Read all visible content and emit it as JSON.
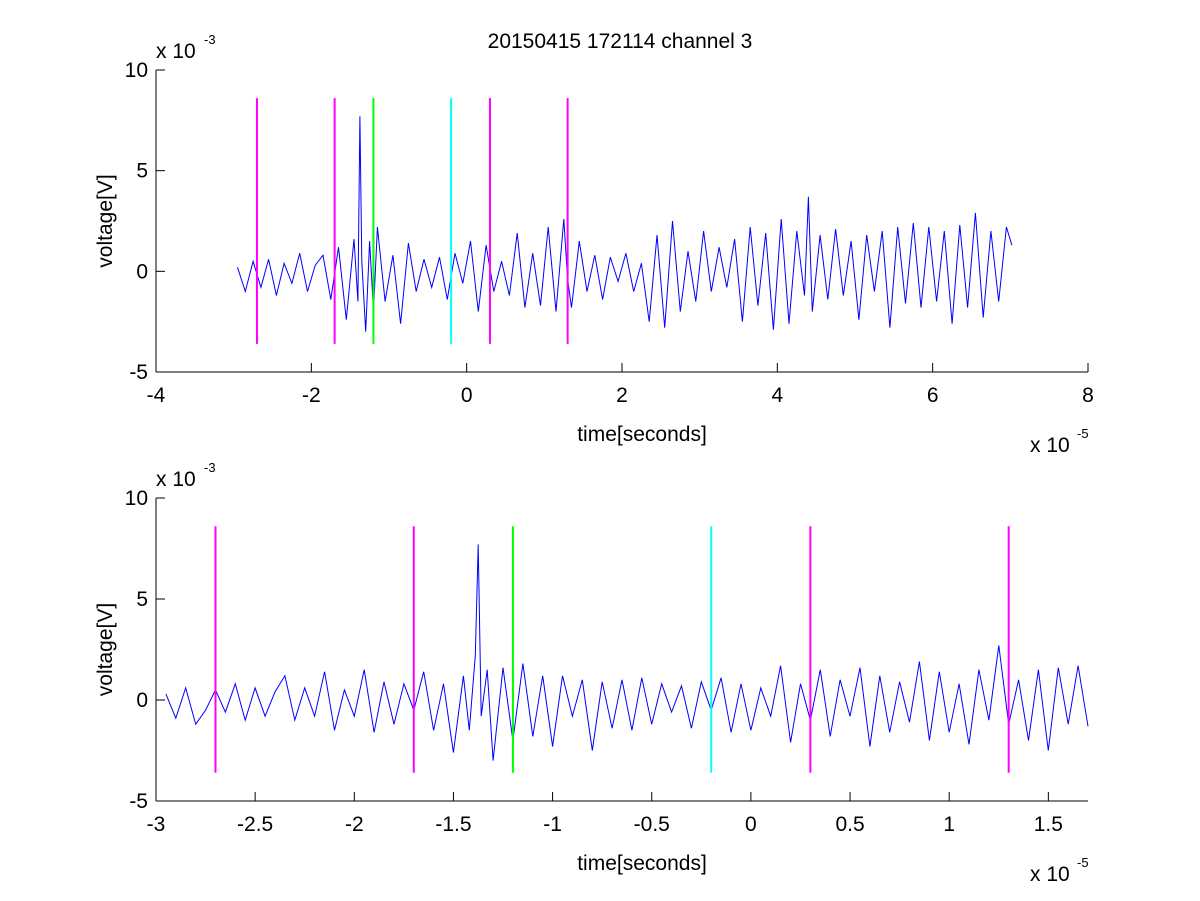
{
  "figure_title": "20150415 172114 channel 3",
  "chart_data": [
    {
      "type": "line",
      "title": "20150415 172114 channel 3",
      "xlabel": "time[seconds]",
      "ylabel": "voltage[V]",
      "xlim": [
        -4,
        8
      ],
      "ylim": [
        -5,
        10
      ],
      "x_multiplier": "x 10",
      "x_exponent": "-5",
      "y_multiplier": "x 10",
      "y_exponent": "-3",
      "x_ticks": [
        -4,
        -2,
        0,
        2,
        4,
        6,
        8
      ],
      "x_tick_labels": [
        "-4",
        "-2",
        "0",
        "2",
        "4",
        "6",
        "8"
      ],
      "y_ticks": [
        -5,
        0,
        5,
        10
      ],
      "y_tick_labels": [
        "-5",
        "0",
        "5",
        "10"
      ],
      "grid": false,
      "series": [
        {
          "color": "#0000ff",
          "x": [
            -2.95,
            -2.85,
            -2.75,
            -2.65,
            -2.55,
            -2.45,
            -2.35,
            -2.25,
            -2.15,
            -2.05,
            -1.95,
            -1.85,
            -1.75,
            -1.65,
            -1.55,
            -1.45,
            -1.4,
            -1.375,
            -1.35,
            -1.3,
            -1.25,
            -1.2,
            -1.15,
            -1.05,
            -0.95,
            -0.85,
            -0.75,
            -0.65,
            -0.55,
            -0.45,
            -0.35,
            -0.25,
            -0.15,
            -0.05,
            0.05,
            0.15,
            0.25,
            0.35,
            0.45,
            0.55,
            0.65,
            0.75,
            0.85,
            0.95,
            1.05,
            1.15,
            1.25,
            1.3,
            1.35,
            1.45,
            1.55,
            1.65,
            1.75,
            1.85,
            1.95,
            2.05,
            2.15,
            2.25,
            2.35,
            2.45,
            2.55,
            2.65,
            2.75,
            2.85,
            2.95,
            3.05,
            3.15,
            3.25,
            3.35,
            3.45,
            3.55,
            3.65,
            3.75,
            3.85,
            3.95,
            4.05,
            4.15,
            4.25,
            4.35,
            4.4,
            4.45,
            4.55,
            4.65,
            4.75,
            4.85,
            4.95,
            5.05,
            5.15,
            5.25,
            5.35,
            5.45,
            5.55,
            5.65,
            5.75,
            5.85,
            5.95,
            6.05,
            6.15,
            6.25,
            6.35,
            6.45,
            6.55,
            6.65,
            6.75,
            6.85,
            6.95,
            7.02
          ],
          "y": [
            0.2,
            -1.0,
            0.5,
            -0.8,
            0.6,
            -1.2,
            0.4,
            -0.6,
            0.9,
            -1.0,
            0.3,
            0.8,
            -1.4,
            1.2,
            -2.4,
            1.6,
            -1.5,
            7.7,
            0.5,
            -3.0,
            1.5,
            -2.0,
            2.2,
            -1.5,
            0.8,
            -2.6,
            1.4,
            -1.0,
            0.6,
            -0.8,
            0.7,
            -1.4,
            0.9,
            -0.6,
            1.5,
            -2.0,
            1.3,
            -1.0,
            0.5,
            -1.2,
            1.9,
            -1.8,
            0.9,
            -1.7,
            2.2,
            -2.0,
            2.6,
            -0.4,
            -1.8,
            1.5,
            -1.0,
            0.8,
            -1.4,
            0.7,
            -0.5,
            0.9,
            -1.0,
            0.4,
            -2.5,
            1.8,
            -2.8,
            2.5,
            -2.0,
            1.0,
            -1.5,
            2.0,
            -1.0,
            1.2,
            -0.8,
            1.6,
            -2.5,
            2.2,
            -1.7,
            1.9,
            -2.9,
            2.6,
            -2.6,
            2.0,
            -1.2,
            3.7,
            -2.0,
            1.8,
            -1.4,
            2.1,
            -1.2,
            1.5,
            -2.4,
            1.8,
            -1.0,
            2.0,
            -2.8,
            2.2,
            -1.6,
            2.4,
            -1.8,
            2.2,
            -1.5,
            2.0,
            -2.6,
            2.3,
            -1.8,
            2.9,
            -2.3,
            2.0,
            -1.5,
            2.2,
            1.3
          ]
        }
      ],
      "markers": [
        {
          "x": -2.7,
          "color": "#ff00ff"
        },
        {
          "x": -1.7,
          "color": "#ff00ff"
        },
        {
          "x": -1.2,
          "color": "#00ff00"
        },
        {
          "x": -0.2,
          "color": "#00ffff"
        },
        {
          "x": 0.3,
          "color": "#ff00ff"
        },
        {
          "x": 1.3,
          "color": "#ff00ff"
        }
      ],
      "marker_y_range": [
        -3.6,
        8.6
      ]
    },
    {
      "type": "line",
      "title": "",
      "xlabel": "time[seconds]",
      "ylabel": "voltage[V]",
      "xlim": [
        -3.0,
        1.7
      ],
      "ylim": [
        -5,
        10
      ],
      "x_multiplier": "x 10",
      "x_exponent": "-5",
      "y_multiplier": "x 10",
      "y_exponent": "-3",
      "x_ticks": [
        -3,
        -2.5,
        -2,
        -1.5,
        -1,
        -0.5,
        0,
        0.5,
        1,
        1.5
      ],
      "x_tick_labels": [
        "-3",
        "-2.5",
        "-2",
        "-1.5",
        "-1",
        "-0.5",
        "0",
        "0.5",
        "1",
        "1.5"
      ],
      "y_ticks": [
        -5,
        0,
        5,
        10
      ],
      "y_tick_labels": [
        "-5",
        "0",
        "5",
        "10"
      ],
      "grid": false,
      "series": [
        {
          "color": "#0000ff",
          "x": [
            -2.95,
            -2.9,
            -2.85,
            -2.8,
            -2.75,
            -2.7,
            -2.65,
            -2.6,
            -2.55,
            -2.5,
            -2.45,
            -2.4,
            -2.35,
            -2.3,
            -2.25,
            -2.2,
            -2.15,
            -2.1,
            -2.05,
            -2.0,
            -1.95,
            -1.9,
            -1.85,
            -1.8,
            -1.75,
            -1.7,
            -1.65,
            -1.6,
            -1.55,
            -1.5,
            -1.45,
            -1.42,
            -1.39,
            -1.375,
            -1.36,
            -1.33,
            -1.3,
            -1.25,
            -1.2,
            -1.15,
            -1.1,
            -1.05,
            -1.0,
            -0.95,
            -0.9,
            -0.85,
            -0.8,
            -0.75,
            -0.7,
            -0.65,
            -0.6,
            -0.55,
            -0.5,
            -0.45,
            -0.4,
            -0.35,
            -0.3,
            -0.25,
            -0.2,
            -0.15,
            -0.1,
            -0.05,
            0.0,
            0.05,
            0.1,
            0.15,
            0.2,
            0.25,
            0.3,
            0.35,
            0.4,
            0.45,
            0.5,
            0.55,
            0.6,
            0.65,
            0.7,
            0.75,
            0.8,
            0.85,
            0.9,
            0.95,
            1.0,
            1.05,
            1.1,
            1.15,
            1.2,
            1.25,
            1.3,
            1.35,
            1.4,
            1.45,
            1.5,
            1.55,
            1.6,
            1.65,
            1.7
          ],
          "y": [
            0.3,
            -0.9,
            0.6,
            -1.2,
            -0.5,
            0.5,
            -0.6,
            0.8,
            -1.0,
            0.6,
            -0.8,
            0.4,
            1.2,
            -1.0,
            0.6,
            -0.8,
            1.4,
            -1.5,
            0.5,
            -0.8,
            1.5,
            -1.6,
            0.9,
            -1.2,
            0.8,
            -0.5,
            1.4,
            -1.5,
            0.8,
            -2.6,
            1.2,
            -1.5,
            2.2,
            7.7,
            -0.8,
            1.5,
            -3.0,
            1.6,
            -2.0,
            1.8,
            -1.8,
            1.2,
            -2.3,
            1.2,
            -0.8,
            1.0,
            -2.5,
            0.9,
            -1.4,
            1.0,
            -1.5,
            1.1,
            -1.2,
            0.8,
            -0.6,
            0.7,
            -1.4,
            0.9,
            -0.5,
            1.1,
            -1.6,
            0.8,
            -1.5,
            0.6,
            -0.8,
            1.7,
            -2.1,
            0.8,
            -1.0,
            1.5,
            -1.8,
            1.0,
            -0.8,
            1.6,
            -2.3,
            1.2,
            -1.6,
            0.9,
            -1.1,
            1.9,
            -2.0,
            1.4,
            -1.6,
            0.8,
            -2.2,
            1.5,
            -1.0,
            2.7,
            -1.2,
            1.0,
            -2.0,
            1.5,
            -2.5,
            1.6,
            -1.2,
            1.7,
            -1.3
          ]
        }
      ],
      "markers": [
        {
          "x": -2.7,
          "color": "#ff00ff"
        },
        {
          "x": -1.7,
          "color": "#ff00ff"
        },
        {
          "x": -1.2,
          "color": "#00ff00"
        },
        {
          "x": -0.2,
          "color": "#00ffff"
        },
        {
          "x": 0.3,
          "color": "#ff00ff"
        },
        {
          "x": 1.3,
          "color": "#ff00ff"
        }
      ],
      "marker_y_range": [
        -3.6,
        8.6
      ]
    }
  ]
}
